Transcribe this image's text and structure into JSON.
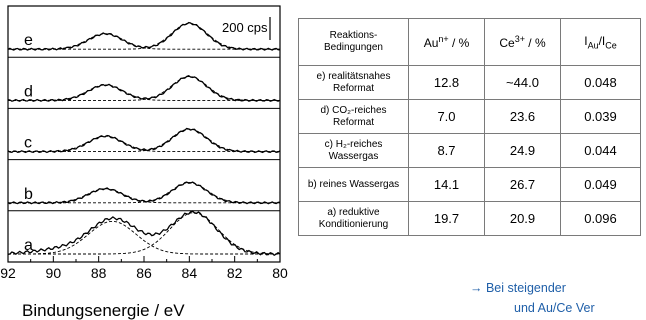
{
  "figure": {
    "panels": [
      {
        "label": "e",
        "order": 0
      },
      {
        "label": "d",
        "order": 1
      },
      {
        "label": "c",
        "order": 2
      },
      {
        "label": "b",
        "order": 3
      },
      {
        "label": "a",
        "order": 4
      }
    ],
    "scale_bar_label": "200 cps",
    "x_ticks": [
      "92",
      "90",
      "88",
      "86",
      "84",
      "82",
      "80"
    ],
    "x_axis_label": "Bindungsenergie / eV"
  },
  "chart_data": {
    "type": "line",
    "xlabel": "Bindungsenergie / eV",
    "x_range": [
      92,
      80
    ],
    "x_reversed": true,
    "series": [
      {
        "panel": "e",
        "peak1_center": 87.7,
        "peak2_center": 84.0,
        "peak1_height": 0.55,
        "peak2_height": 0.92
      },
      {
        "panel": "d",
        "peak1_center": 87.7,
        "peak2_center": 84.0,
        "peak1_height": 0.55,
        "peak2_height": 0.85
      },
      {
        "panel": "c",
        "peak1_center": 87.7,
        "peak2_center": 84.0,
        "peak1_height": 0.55,
        "peak2_height": 0.8
      },
      {
        "panel": "b",
        "peak1_center": 87.7,
        "peak2_center": 84.0,
        "peak1_height": 0.5,
        "peak2_height": 0.72
      },
      {
        "panel": "a",
        "peak1_center": 87.4,
        "peak2_center": 83.8,
        "peak1_height": 0.75,
        "peak2_height": 0.95
      }
    ]
  },
  "table": {
    "headers": [
      {
        "text": "Reaktions-Bedingungen"
      },
      {
        "text": "Auⁿ⁺ / %"
      },
      {
        "text": "Ce³⁺ / %"
      },
      {
        "text": "I_Au/I_Ce"
      }
    ],
    "rows": [
      {
        "condition": "e) realitätsnahes Reformat",
        "au": "12.8",
        "ce": "~44.0",
        "ratio": "0.048"
      },
      {
        "condition": "d) CO₂-reiches Reformat",
        "au": "7.0",
        "ce": "23.6",
        "ratio": "0.039"
      },
      {
        "condition": "c) H₂-reiches Wassergas",
        "au": "8.7",
        "ce": "24.9",
        "ratio": "0.044"
      },
      {
        "condition": "b) reines Wassergas",
        "au": "14.1",
        "ce": "26.7",
        "ratio": "0.049"
      },
      {
        "condition": "a) reduktive Konditionierung",
        "au": "19.7",
        "ce": "20.9",
        "ratio": "0.096"
      }
    ]
  },
  "conclusion": {
    "line1": "→ Bei steigender",
    "line2": "und Au/Ce Ver"
  },
  "colors": {
    "text": "#000000",
    "accent_blue": "#1f5fa8",
    "table_border": "#7a7a7a"
  }
}
